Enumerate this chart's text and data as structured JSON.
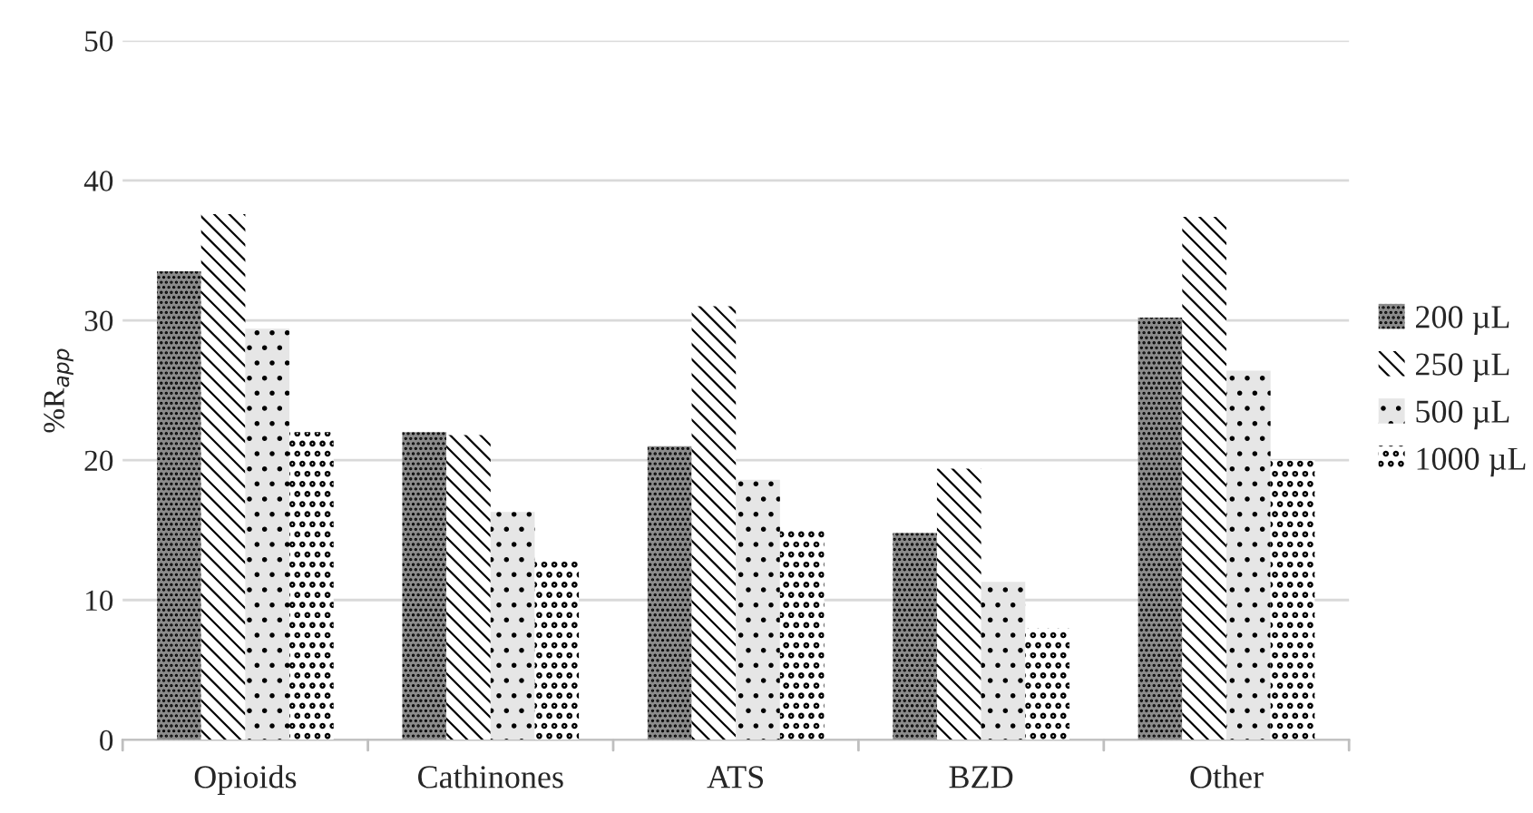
{
  "chart_data": {
    "type": "bar",
    "ylabel": "%R$_{app}$",
    "categories": [
      "Opioids",
      "Cathinones",
      "ATS",
      "BZD",
      "Other"
    ],
    "series": [
      {
        "name": "200 µL",
        "color": "#8c8c8c",
        "values": [
          33.5,
          22.0,
          21.0,
          14.8,
          30.2
        ]
      },
      {
        "name": "250 µL",
        "color": "#ffffff",
        "values": [
          37.6,
          21.8,
          31.0,
          19.4,
          37.4
        ]
      },
      {
        "name": "500 µL",
        "color": "#e6e6e6",
        "values": [
          29.4,
          16.3,
          18.6,
          11.3,
          26.4
        ]
      },
      {
        "name": "1000 µL",
        "color": "#ffffff",
        "values": [
          22.0,
          13.0,
          15.0,
          8.0,
          20.0
        ]
      }
    ],
    "ylim": [
      0,
      50
    ],
    "yticks": [
      0,
      10,
      20,
      30,
      40,
      50
    ],
    "grid": "y",
    "legend": "right"
  }
}
